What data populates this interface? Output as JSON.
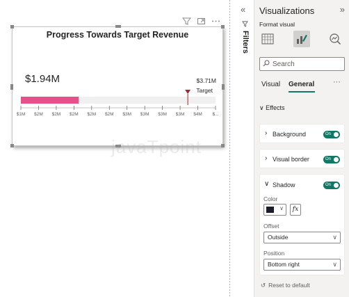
{
  "canvas": {
    "visual": {
      "title": "Progress Towards Target Revenue",
      "value_label": "$1.94M",
      "target_value_label": "$3.71M",
      "target_label": "Target",
      "toolbar_icons": [
        "filter-icon",
        "focus-mode-icon",
        "more-options-icon"
      ]
    },
    "watermark": "javaTpoint"
  },
  "chart_data": {
    "type": "bar",
    "title": "Progress Towards Target Revenue",
    "value": 1.94,
    "target": 3.71,
    "value_display": "$1.94M",
    "target_display": "$3.71M",
    "bar_color": "#e8508a",
    "target_color": "#a4262c",
    "track_color": "#f0f0f0",
    "ticks": [
      "$1M",
      "$2M",
      "$2M",
      "$2M",
      "$2M",
      "$2M",
      "$3M",
      "$3M",
      "$3M",
      "$3M",
      "$4M",
      "$..."
    ]
  },
  "filters_pane": {
    "label": "Filters",
    "collapse_icon": "«",
    "icon": "funnel-outline-icon"
  },
  "viz_pane": {
    "title": "Visualizations",
    "expand_icon": "»",
    "subtitle": "Format visual",
    "icons": [
      "build-visual-icon",
      "format-visual-icon",
      "analytics-icon"
    ],
    "search_placeholder": "Search",
    "tabs": {
      "visual": "Visual",
      "general": "General"
    },
    "more_label": "···",
    "effects_label": "Effects",
    "cards": {
      "background": {
        "label": "Background",
        "toggle": "On"
      },
      "visual_border": {
        "label": "Visual border",
        "toggle": "On"
      },
      "shadow": {
        "label": "Shadow",
        "toggle": "On",
        "color_label": "Color",
        "color_value": "#1b1b2e",
        "fx_label": "fx",
        "offset_label": "Offset",
        "offset_value": "Outside",
        "position_label": "Position",
        "position_value": "Bottom right"
      }
    },
    "reset_label": "Reset to default"
  },
  "colors": {
    "accent": "#117865",
    "pane_bg": "#f3f2f1"
  }
}
